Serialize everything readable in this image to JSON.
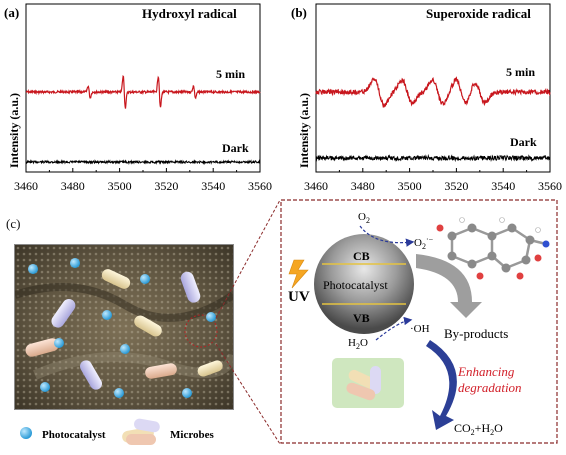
{
  "panel_a": {
    "label": "(a)",
    "title": "Hydroxyl radical",
    "ylabel": "Intensity (a.u.)",
    "trace_labels": [
      "5 min",
      "Dark"
    ],
    "xticks": [
      "3460",
      "3480",
      "3500",
      "3520",
      "3540",
      "3560"
    ]
  },
  "panel_b": {
    "label": "(b)",
    "title": "Superoxide radical",
    "ylabel": "Intensity (a.u.)",
    "trace_labels": [
      "5 min",
      "Dark"
    ],
    "xticks": [
      "3460",
      "3480",
      "3500",
      "3520",
      "3540",
      "3560"
    ]
  },
  "chart_data": [
    {
      "type": "line",
      "title": "Hydroxyl radical",
      "ylabel": "Intensity (a.u.)",
      "xlim": [
        3460,
        3560
      ],
      "series": [
        {
          "name": "5 min",
          "color": "#c8161d",
          "peaks_x": [
            3487,
            3502,
            3517,
            3532
          ]
        },
        {
          "name": "Dark",
          "color": "#000000"
        }
      ]
    },
    {
      "type": "line",
      "title": "Superoxide radical",
      "ylabel": "Intensity (a.u.)",
      "xlim": [
        3460,
        3560
      ],
      "series": [
        {
          "name": "5 min",
          "color": "#c8161d",
          "peaks_x": [
            3487,
            3499,
            3512,
            3522,
            3530
          ]
        },
        {
          "name": "Dark",
          "color": "#000000"
        }
      ]
    }
  ],
  "panel_c": {
    "label": "(c)",
    "legend": {
      "photocatalyst": "Photocatalyst",
      "microbes": "Microbes"
    },
    "diagram": {
      "uv": "UV",
      "cb": "CB",
      "vb": "VB",
      "center": "Photocatalyst",
      "o2": "O",
      "o2_sub": "2",
      "superoxide": "O",
      "superoxide_sub": "2",
      "superoxide_sup": "·−",
      "h2o": "H",
      "h2o_sub": "2",
      "h2o_tail": "O",
      "oh": "·OH",
      "byproducts": "By-products",
      "enhancing_1": "Enhancing",
      "enhancing_2": "degradation",
      "co2": "CO",
      "co2_sub": "2",
      "co2_mid": "+H",
      "co2_sub2": "2",
      "co2_tail": "O"
    },
    "colors": {
      "accent": "#c8161d",
      "frame": "#8b2b2b",
      "arrow_blue": "#2a3a9a",
      "enhance_text": "#d2202a"
    }
  }
}
